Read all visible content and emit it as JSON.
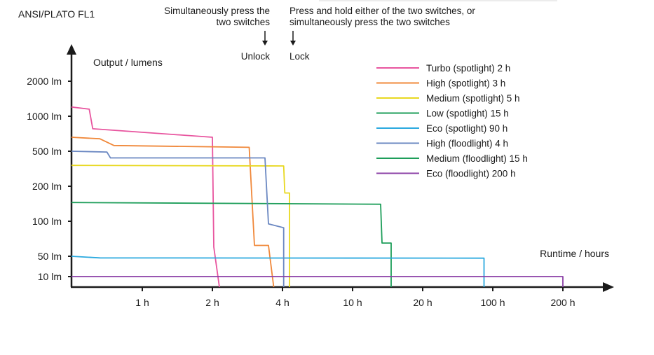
{
  "chart_data": {
    "type": "line",
    "standard_label": "ANSI/PLATO FL1",
    "ylabel": "Output / lumens",
    "xlabel": "Runtime / hours",
    "y_ticks": [
      {
        "label": "2000 lm",
        "value": 2000
      },
      {
        "label": "1000 lm",
        "value": 1000
      },
      {
        "label": "500 lm",
        "value": 500
      },
      {
        "label": "200 lm",
        "value": 200
      },
      {
        "label": "100 lm",
        "value": 100
      },
      {
        "label": "50 lm",
        "value": 50
      },
      {
        "label": "10 lm",
        "value": 10
      }
    ],
    "x_ticks": [
      {
        "label": "1 h",
        "value": 1
      },
      {
        "label": "2 h",
        "value": 2
      },
      {
        "label": "4 h",
        "value": 4
      },
      {
        "label": "10 h",
        "value": 10
      },
      {
        "label": "20 h",
        "value": 20
      },
      {
        "label": "100 h",
        "value": 100
      },
      {
        "label": "200 h",
        "value": 200
      }
    ],
    "annotations": [
      {
        "text_lines": [
          "Simultaneously press the",
          "two switches"
        ],
        "marker_label": "Unlock",
        "at_x": 3.5
      },
      {
        "text_lines": [
          "Press and hold either of the two switches, or",
          "simultaneously press the two switches"
        ],
        "marker_label": "Lock",
        "at_x": 4
      }
    ],
    "legend_position": "top-right",
    "series": [
      {
        "name": "Turbo (spotlight) 2 h",
        "color": "#e8559f",
        "points": [
          [
            0,
            1200
          ],
          [
            0.25,
            1150
          ],
          [
            0.3,
            780
          ],
          [
            2,
            660
          ],
          [
            2.04,
            60
          ],
          [
            2.2,
            7
          ]
        ]
      },
      {
        "name": "High (spotlight) 3 h",
        "color": "#f0883a",
        "points": [
          [
            0,
            660
          ],
          [
            0.4,
            640
          ],
          [
            0.6,
            560
          ],
          [
            3.05,
            540
          ],
          [
            3.2,
            62
          ],
          [
            3.6,
            62
          ],
          [
            3.75,
            7
          ]
        ]
      },
      {
        "name": "Medium (spotlight) 5 h",
        "color": "#e8d820",
        "points": [
          [
            0,
            345
          ],
          [
            4.1,
            340
          ],
          [
            4.2,
            175
          ],
          [
            4.6,
            175
          ],
          [
            4.6,
            7
          ]
        ]
      },
      {
        "name": "Low (spotlight) 15 h",
        "color": "#1e9e5a",
        "points": [
          [
            0,
            145
          ],
          [
            14,
            140
          ],
          [
            14.2,
            65
          ],
          [
            15.5,
            65
          ],
          [
            15.5,
            7
          ]
        ]
      },
      {
        "name": "Eco (spotlight) 90 h",
        "color": "#2ba9df",
        "points": [
          [
            0,
            50
          ],
          [
            0.4,
            44
          ],
          [
            90,
            43
          ],
          [
            90,
            7
          ]
        ]
      },
      {
        "name": "High (floodlight) 4 h",
        "color": "#6b88c2",
        "points": [
          [
            0,
            500
          ],
          [
            0.5,
            490
          ],
          [
            0.55,
            420
          ],
          [
            3.5,
            420
          ],
          [
            3.6,
            95
          ],
          [
            4.1,
            88
          ],
          [
            4.1,
            7
          ]
        ]
      },
      {
        "name": "Medium (floodlight) 15 h",
        "color": "#1e9e5a",
        "points": []
      },
      {
        "name": "Eco (floodlight) 200 h",
        "color": "#8b3fa6",
        "points": [
          [
            0,
            10
          ],
          [
            200,
            10
          ],
          [
            200,
            7
          ]
        ]
      }
    ]
  }
}
